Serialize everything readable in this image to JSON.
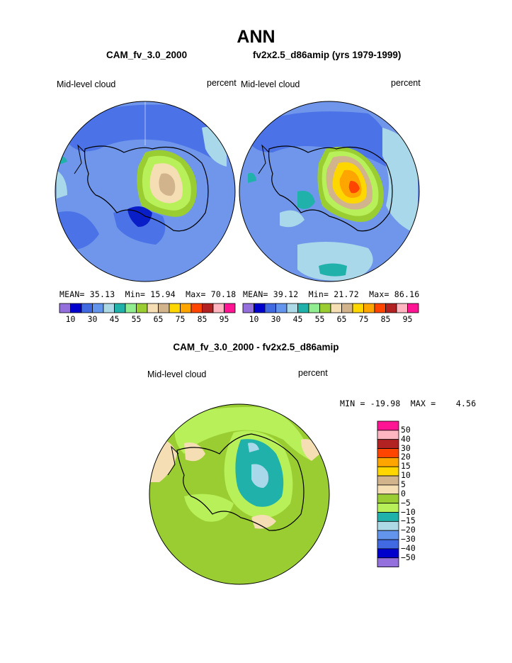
{
  "title": "ANN",
  "panels": [
    {
      "case": "CAM_fv_3.0_2000",
      "variable": "Mid-level cloud",
      "units": "percent",
      "stats": {
        "mean_label": "MEAN=",
        "mean": "35.13",
        "min_label": "Min=",
        "min": "15.94",
        "max_label": "Max=",
        "max": "70.18"
      }
    },
    {
      "case": "fv2x2.5_d86amip (yrs 1979-1999)",
      "variable": "Mid-level cloud",
      "units": "percent",
      "stats": {
        "mean_label": "MEAN=",
        "mean": "39.12",
        "min_label": "Min=",
        "min": "21.72",
        "max_label": "Max=",
        "max": "86.16"
      }
    }
  ],
  "colorbar_labels": [
    "10",
    "30",
    "45",
    "55",
    "65",
    "75",
    "85",
    "95"
  ],
  "colorbar_colors": [
    "#9370db",
    "#0000cd",
    "#4169e1",
    "#6495ed",
    "#add8e6",
    "#20b2aa",
    "#90ee90",
    "#9acd32",
    "#f5deb3",
    "#d2b48c",
    "#ffd700",
    "#ffa500",
    "#ff4500",
    "#b22222",
    "#ffb6c1",
    "#ff1493"
  ],
  "diff": {
    "title": "CAM_fv_3.0_2000 - fv2x2.5_d86amip",
    "variable": "Mid-level cloud",
    "units": "percent",
    "minmax": "MIN = -19.98  MAX =    4.56",
    "legend_labels": [
      "50",
      "40",
      "30",
      "20",
      "15",
      "10",
      "5",
      "0",
      "−5",
      "−10",
      "−15",
      "−20",
      "−30",
      "−40",
      "−50"
    ],
    "legend_colors": [
      "#ff1493",
      "#ffb6c1",
      "#b22222",
      "#ff4500",
      "#ffa500",
      "#ffd700",
      "#d2b48c",
      "#f5deb3",
      "#9acd32",
      "#b8f05a",
      "#20b2aa",
      "#add8e6",
      "#6495ed",
      "#4169e1",
      "#0000cd",
      "#9370db"
    ]
  }
}
